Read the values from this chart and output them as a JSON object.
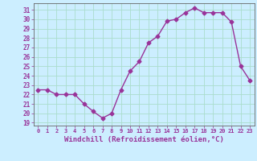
{
  "x": [
    0,
    1,
    2,
    3,
    4,
    5,
    6,
    7,
    8,
    9,
    10,
    11,
    12,
    13,
    14,
    15,
    16,
    17,
    18,
    19,
    20,
    21,
    22,
    23
  ],
  "y": [
    22.5,
    22.5,
    22.0,
    22.0,
    22.0,
    21.0,
    20.2,
    19.5,
    20.0,
    22.5,
    24.5,
    25.5,
    27.5,
    28.2,
    29.8,
    30.0,
    30.7,
    31.2,
    30.7,
    30.7,
    30.7,
    29.7,
    25.0,
    23.5
  ],
  "line_color": "#993399",
  "marker": "D",
  "marker_size": 2.5,
  "xlabel": "Windchill (Refroidissement éolien,°C)",
  "ylabel_ticks": [
    19,
    20,
    21,
    22,
    23,
    24,
    25,
    26,
    27,
    28,
    29,
    30,
    31
  ],
  "xlim": [
    -0.5,
    23.5
  ],
  "ylim": [
    18.7,
    31.7
  ],
  "bg_color": "#cceeff",
  "grid_color": "#aaddcc",
  "tick_color": "#993399",
  "label_color": "#993399"
}
